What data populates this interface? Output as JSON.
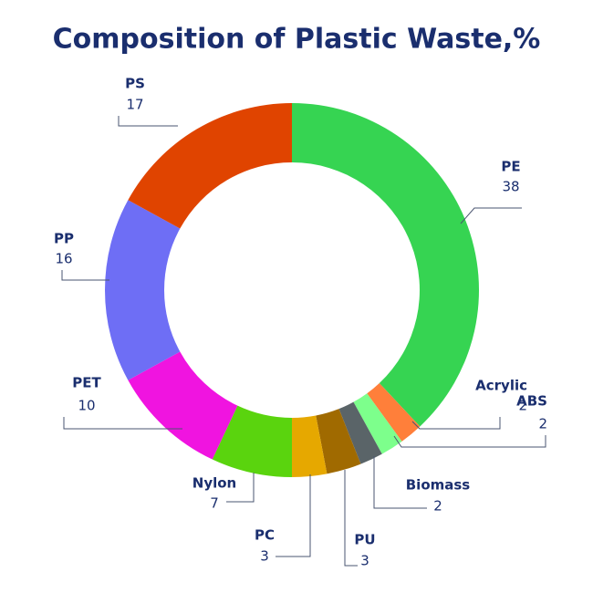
{
  "chart_data": {
    "type": "donut",
    "title": "Composition of Plastic Waste,%",
    "categories": [
      "PE",
      "Acrylic",
      "ABS",
      "Biomass",
      "PU",
      "PC",
      "Nylon",
      "PET",
      "PP",
      "PS"
    ],
    "values": [
      38,
      2,
      2,
      2,
      3,
      3,
      7,
      10,
      16,
      17
    ],
    "colors": [
      "#36d452",
      "#ff7f3a",
      "#7dff8c",
      "#5a6468",
      "#a06a00",
      "#e6a800",
      "#5ad40e",
      "#f014e0",
      "#6e6ef5",
      "#e04400"
    ]
  }
}
